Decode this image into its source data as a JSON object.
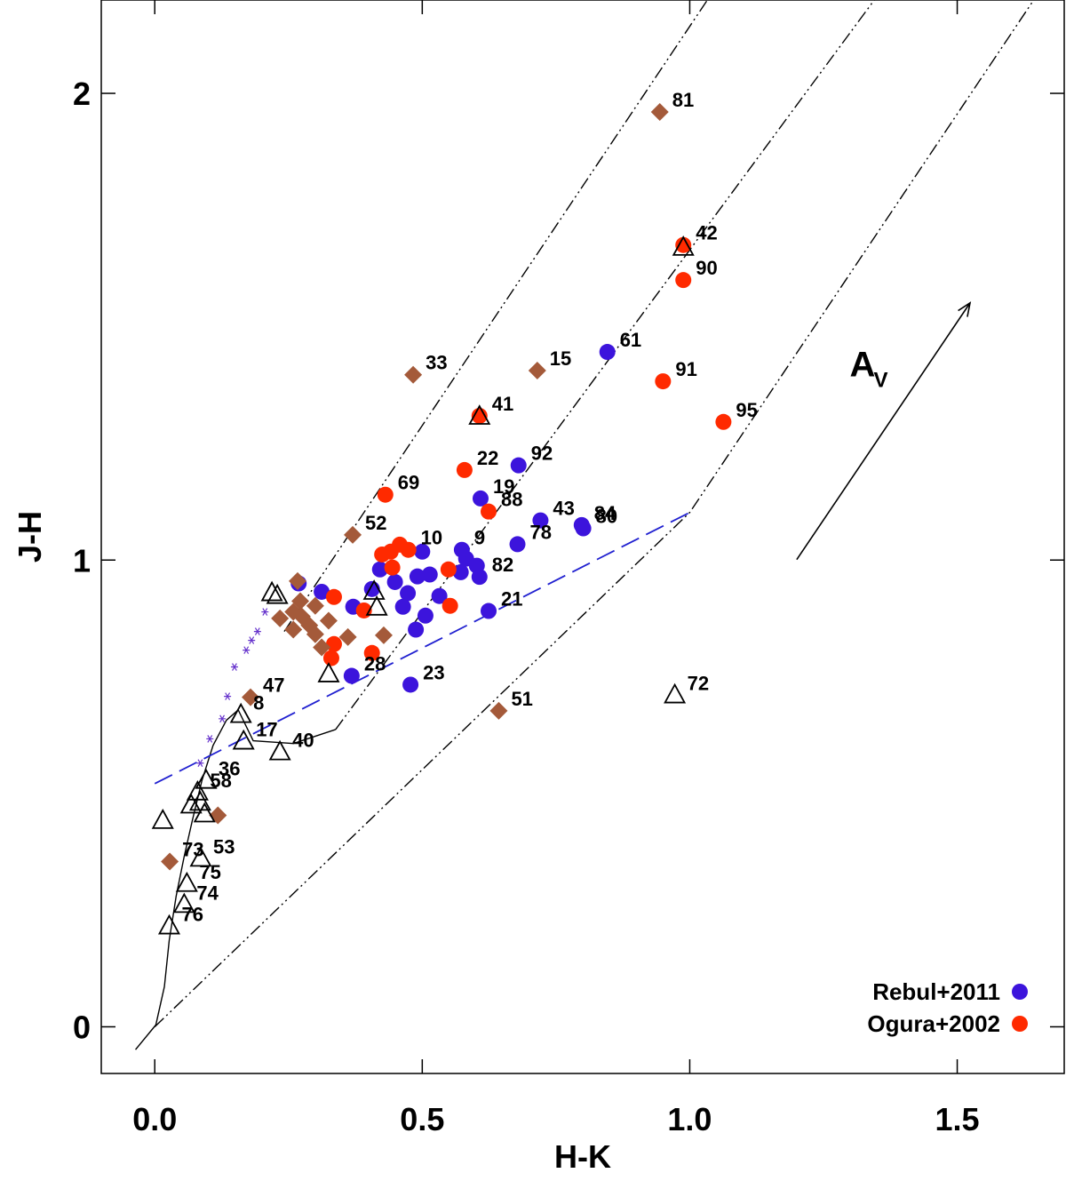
{
  "chart_data": {
    "type": "scatter",
    "xlabel": "H-K",
    "ylabel": "J-H",
    "xlim": [
      -0.1,
      1.7
    ],
    "ylim": [
      -0.1,
      2.2
    ],
    "xticks": [
      {
        "value": 0,
        "label": "0.0"
      },
      {
        "value": 0.5,
        "label": "0.5"
      },
      {
        "value": 1,
        "label": "1.0"
      },
      {
        "value": 1.5,
        "label": "1.5"
      }
    ],
    "yticks": [
      0,
      1,
      2
    ],
    "legend": "lower right",
    "series": [
      {
        "name": "Rebul+2011",
        "color": "#3c14dc",
        "marker": "circle",
        "x": [
          0.846,
          0.68,
          0.609,
          0.721,
          0.798,
          0.801,
          0.678,
          0.5,
          0.574,
          0.582,
          0.572,
          0.602,
          0.607,
          0.421,
          0.491,
          0.514,
          0.449,
          0.473,
          0.532,
          0.406,
          0.312,
          0.269,
          0.464,
          0.371,
          0.506,
          0.488,
          0.624,
          0.368,
          0.478
        ],
        "values": [
          1.446,
          1.203,
          1.132,
          1.085,
          1.075,
          1.068,
          1.034,
          1.018,
          1.022,
          1.003,
          0.974,
          0.988,
          0.964,
          0.98,
          0.965,
          0.969,
          0.953,
          0.929,
          0.923,
          0.938,
          0.932,
          0.95,
          0.9,
          0.9,
          0.881,
          0.851,
          0.891,
          0.752,
          0.733
        ],
        "labels": [
          "61",
          "92",
          "19",
          "43",
          "84",
          "80",
          "78",
          null,
          "9",
          null,
          null,
          null,
          "82",
          null,
          null,
          null,
          null,
          null,
          null,
          null,
          null,
          null,
          null,
          null,
          null,
          null,
          "21",
          "28",
          "23"
        ]
      },
      {
        "name": "Ogura+2002",
        "color": "#ff2a00",
        "marker": "circle",
        "x": [
          0.988,
          0.988,
          0.95,
          1.063,
          0.607,
          0.579,
          0.431,
          0.624,
          0.425,
          0.441,
          0.458,
          0.474,
          0.444,
          0.549,
          0.552,
          0.335,
          0.391,
          0.335,
          0.33,
          0.406
        ],
        "values": [
          1.675,
          1.6,
          1.383,
          1.296,
          1.309,
          1.193,
          1.14,
          1.104,
          1.012,
          1.018,
          1.033,
          1.022,
          0.984,
          0.98,
          0.902,
          0.921,
          0.892,
          0.82,
          0.79,
          0.801
        ],
        "labels": [
          "42",
          "90",
          "91",
          "95",
          "41",
          "22",
          "69",
          "88",
          null,
          null,
          null,
          "10",
          null,
          null,
          null,
          null,
          null,
          null,
          null,
          null
        ]
      },
      {
        "color": "#a45a3a",
        "marker": "diamond",
        "x": [
          0.944,
          0.483,
          0.715,
          0.37,
          0.643,
          0.179,
          0.118,
          0.028,
          0.428,
          0.361,
          0.267,
          0.272,
          0.259,
          0.234,
          0.3,
          0.289,
          0.3,
          0.275,
          0.312,
          0.259,
          0.325
        ],
        "values": [
          1.96,
          1.397,
          1.406,
          1.054,
          0.677,
          0.706,
          0.453,
          0.354,
          0.839,
          0.835,
          0.955,
          0.912,
          0.889,
          0.875,
          0.902,
          0.86,
          0.841,
          0.879,
          0.813,
          0.851,
          0.87
        ],
        "labels": [
          "81",
          "33",
          "15",
          "52",
          "51",
          "47",
          null,
          "73",
          null,
          null,
          null,
          null,
          null,
          null,
          null,
          null,
          null,
          null,
          null,
          null,
          null
        ]
      },
      {
        "color": "#000000",
        "marker": "triangle",
        "x": [
          0.988,
          0.607,
          0.219,
          0.229,
          0.41,
          0.415,
          0.325,
          0.972,
          0.161,
          0.166,
          0.234,
          0.096,
          0.08,
          0.068,
          0.085,
          0.093,
          0.015,
          0.086,
          0.06,
          0.055,
          0.027
        ],
        "values": [
          1.669,
          1.307,
          0.929,
          0.923,
          0.932,
          0.898,
          0.755,
          0.71,
          0.668,
          0.611,
          0.588,
          0.527,
          0.502,
          0.474,
          0.48,
          0.455,
          0.441,
          0.36,
          0.306,
          0.261,
          0.215
        ],
        "labels": [
          null,
          null,
          null,
          null,
          null,
          null,
          null,
          "72",
          "8",
          "17",
          "40",
          "36",
          "58",
          null,
          null,
          null,
          null,
          "53",
          "75",
          "74",
          "76"
        ]
      },
      {
        "color": "#6633cc",
        "marker": "asterisk",
        "x": [
          0.085,
          0.103,
          0.126,
          0.136,
          0.149,
          0.171,
          0.181,
          0.192,
          0.206
        ],
        "values": [
          0.565,
          0.617,
          0.66,
          0.708,
          0.771,
          0.807,
          0.828,
          0.847,
          0.889
        ]
      }
    ],
    "lines": [
      {
        "color": "#000000",
        "style": "solid",
        "x": [
          -0.036,
          0.002,
          0.018,
          0.027,
          0.04,
          0.055,
          0.07,
          0.088,
          0.109,
          0.134,
          0.156,
          0.184,
          0.259,
          0.338
        ],
        "y": [
          -0.049,
          0.004,
          0.086,
          0.185,
          0.28,
          0.365,
          0.441,
          0.527,
          0.603,
          0.657,
          0.679,
          0.613,
          0.607,
          0.637
        ]
      },
      {
        "color": "#2020d0",
        "style": "dashed",
        "x": [
          0.0,
          1.0
        ],
        "y": [
          0.521,
          1.102
        ]
      },
      {
        "color": "#000000",
        "style": "dashdotdot",
        "x": [
          0.242,
          1.033
        ],
        "y": [
          0.847,
          2.2
        ]
      },
      {
        "color": "#000000",
        "style": "dashdotdot",
        "x": [
          0.338,
          1.345
        ],
        "y": [
          0.637,
          2.2
        ]
      },
      {
        "color": "#000000",
        "style": "dashdotdot",
        "x": [
          0.0,
          1.0,
          1.643
        ],
        "y": [
          0.0,
          1.102,
          2.2
        ]
      }
    ],
    "arrow": {
      "x": [
        1.2,
        1.524
      ],
      "y": [
        1.001,
        1.551
      ]
    },
    "av_label": {
      "text": "A",
      "sub": "V"
    }
  }
}
